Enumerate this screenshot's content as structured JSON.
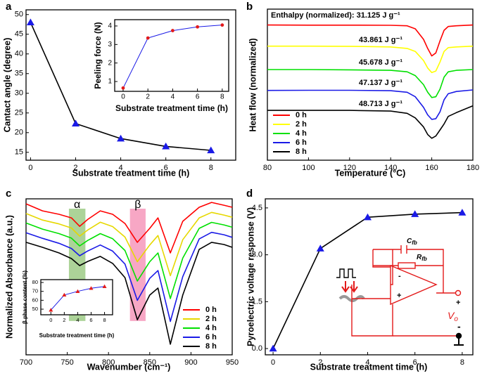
{
  "chart_data": [
    {
      "type": "line",
      "panel_label": "a",
      "x_label": "Substrate treatment time (h)",
      "y_label": "Cantact angle (degree)",
      "x": [
        0,
        2,
        4,
        6,
        8
      ],
      "values": [
        48,
        22.3,
        18.5,
        16.5,
        15.5
      ],
      "color": "#000000",
      "marker": "triangle",
      "marker_color": "#1a1ae6",
      "xlim": [
        -0.2,
        9.1
      ],
      "xticks": [
        0,
        2,
        4,
        6,
        8
      ],
      "ylim": [
        13,
        51.2
      ],
      "yticks": [
        15,
        20,
        25,
        30,
        35,
        40,
        45,
        50
      ]
    },
    {
      "type": "line",
      "x_label": "Substrate treatment time (h)",
      "y_label": "Peeling force (N)",
      "x": [
        0,
        2,
        4,
        6,
        8
      ],
      "values": [
        0.65,
        3.35,
        3.75,
        3.95,
        4.05
      ],
      "color": "#1a1ae6",
      "marker": "circle",
      "marker_color": "#e31a1a",
      "xlim": [
        -0.68,
        8.52
      ],
      "xticks": [
        0,
        2,
        4,
        6,
        8
      ],
      "ylim": [
        0.47,
        4.34
      ],
      "yticks": [
        1,
        2,
        3,
        4
      ]
    },
    {
      "type": "line",
      "panel_label": "b",
      "x_label": "Temperature (°C)",
      "y_label": "Heat flow (normalized)",
      "x": [
        80,
        100,
        120,
        140,
        148,
        152,
        156,
        158,
        160,
        162,
        164,
        166,
        168,
        172,
        180
      ],
      "series": [
        {
          "name": "0 h",
          "color": "#ff0000",
          "values": [
            8.95,
            8.94,
            8.94,
            8.93,
            8.9,
            8.7,
            8.0,
            7.4,
            6.9,
            7.1,
            7.9,
            8.6,
            8.85,
            8.9,
            8.95
          ]
        },
        {
          "name": "2 h",
          "color": "#ffff00",
          "values": [
            7.55,
            7.55,
            7.54,
            7.5,
            7.4,
            7.2,
            6.6,
            6.1,
            5.8,
            5.9,
            6.5,
            7.2,
            7.45,
            7.5,
            7.55
          ]
        },
        {
          "name": "4 h",
          "color": "#00e000",
          "values": [
            6.0,
            6.0,
            5.98,
            5.95,
            5.85,
            5.6,
            5.0,
            4.5,
            4.15,
            4.2,
            4.7,
            5.5,
            5.85,
            5.95,
            6.0
          ]
        },
        {
          "name": "6 h",
          "color": "#1a1ae6",
          "values": [
            4.62,
            4.63,
            4.63,
            4.6,
            4.5,
            4.2,
            3.5,
            3.0,
            2.7,
            2.75,
            3.2,
            4.0,
            4.4,
            4.55,
            4.65
          ]
        },
        {
          "name": "8 h",
          "color": "#000000",
          "values": [
            3.3,
            3.3,
            3.3,
            3.25,
            3.1,
            2.8,
            2.2,
            1.7,
            1.45,
            1.6,
            2.0,
            2.4,
            2.9,
            3.15,
            3.6
          ]
        }
      ],
      "annotations": [
        "Enthalpy (normalized): 31.125 J g⁻¹",
        "43.861 J g⁻¹",
        "45.678 J g⁻¹",
        "47.137 J g⁻¹",
        "48.713 J g⁻¹"
      ],
      "legend": "lower left",
      "xlim": [
        80,
        180
      ],
      "xticks": [
        80,
        100,
        120,
        140,
        160,
        180
      ],
      "ylim": [
        0,
        10
      ]
    },
    {
      "type": "line",
      "panel_label": "c",
      "x_label": "Wavenumber (cm⁻¹)",
      "y_label": "Normalized Absorbance (a.u.)",
      "x": [
        700,
        720,
        740,
        755,
        765,
        775,
        790,
        805,
        820,
        835,
        850,
        860,
        875,
        890,
        910,
        925,
        940,
        950
      ],
      "series": [
        {
          "name": "0 h",
          "color": "#ff0000",
          "values": [
            9.68,
            9.23,
            9.01,
            8.78,
            8.24,
            8.69,
            9.23,
            9.01,
            8.42,
            7.21,
            8.11,
            8.78,
            6.53,
            8.56,
            9.46,
            9.77,
            9.59,
            9.46
          ]
        },
        {
          "name": "2 h",
          "color": "#e6d800",
          "values": [
            9.06,
            8.64,
            8.39,
            8.13,
            7.61,
            8.01,
            8.5,
            8.22,
            7.55,
            5.97,
            7.04,
            7.65,
            5.07,
            7.38,
            8.78,
            9.13,
            8.96,
            8.82
          ]
        },
        {
          "name": "4 h",
          "color": "#00e000",
          "values": [
            8.45,
            8.06,
            7.77,
            7.48,
            6.98,
            7.34,
            7.77,
            7.44,
            6.69,
            4.73,
            5.97,
            6.53,
            3.61,
            6.2,
            8.11,
            8.49,
            8.33,
            8.18
          ]
        },
        {
          "name": "6 h",
          "color": "#1a1ae6",
          "values": [
            7.83,
            7.47,
            7.15,
            6.82,
            6.35,
            6.66,
            7.04,
            6.65,
            5.82,
            3.49,
            4.9,
            5.4,
            2.14,
            5.01,
            7.43,
            7.85,
            7.7,
            7.53
          ]
        },
        {
          "name": "8 h",
          "color": "#000000",
          "values": [
            7.21,
            6.89,
            6.53,
            6.17,
            5.72,
            5.99,
            6.31,
            5.86,
            4.95,
            2.25,
            3.83,
            4.28,
            0.68,
            3.83,
            6.76,
            7.21,
            7.07,
            6.89
          ]
        }
      ],
      "bands": [
        {
          "label": "α",
          "range": [
            752,
            772
          ],
          "color": "#5aa832"
        },
        {
          "label": "β",
          "range": [
            826,
            845
          ],
          "color": "#f0508c"
        }
      ],
      "legend": "lower right",
      "xlim": [
        700,
        950
      ],
      "xticks": [
        700,
        750,
        800,
        850,
        900,
        950
      ],
      "ylim": [
        0,
        10
      ]
    },
    {
      "type": "line",
      "x_label": "Substrate treatment time (h)",
      "y_label": "β phase content (%)",
      "x": [
        0,
        2,
        4,
        6,
        8
      ],
      "values": [
        49,
        66,
        70,
        73.5,
        75.5
      ],
      "color": "#1a1ae6",
      "marker": "triangle",
      "marker_color": "#e31a1a",
      "xlim": [
        -1.5,
        9.2
      ],
      "xticks": [
        0,
        2,
        4,
        6,
        8
      ],
      "ylim": [
        43.7,
        83.2
      ],
      "yticks": [
        50,
        60,
        70,
        80
      ]
    },
    {
      "type": "line",
      "panel_label": "d",
      "x_label": "Substrate treatment time (h)",
      "y_label": "Pyroelectric voltage response (V)",
      "x": [
        0,
        2,
        4,
        6,
        8
      ],
      "values": [
        0,
        3.2,
        4.2,
        4.3,
        4.35
      ],
      "color": "#000000",
      "marker": "triangle",
      "marker_color": "#1a1ae6",
      "xlim": [
        -0.33,
        8.45
      ],
      "xticks": [
        0,
        2,
        4,
        6,
        8
      ],
      "ylim": [
        -0.2,
        4.79
      ],
      "yticks": [
        {
          "value": 0,
          "label": "0.0"
        },
        1.5,
        {
          "value": 3,
          "label": "3.0"
        },
        4.5
      ],
      "annotations": [
        {
          "text": "C",
          "sub": "fb"
        },
        {
          "text": "R",
          "sub": "fb"
        },
        {
          "text": "V",
          "sub": "o"
        },
        "-",
        "+",
        "+",
        "-"
      ]
    }
  ]
}
